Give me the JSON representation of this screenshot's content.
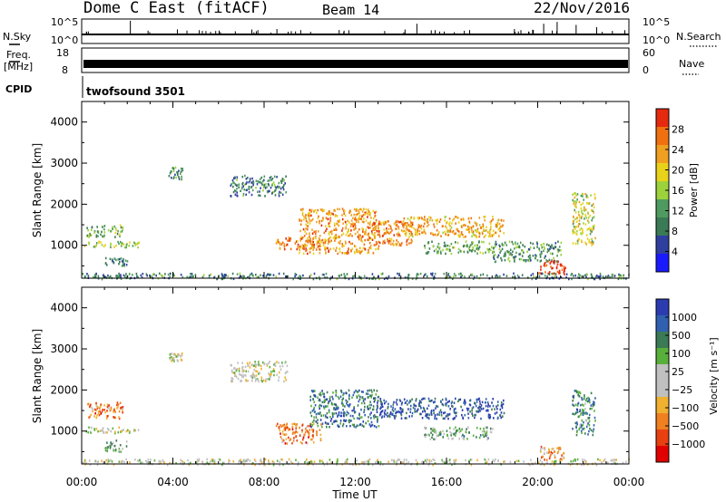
{
  "header": {
    "title": "Dome C East (fitACF)",
    "beam": "Beam 14",
    "date": "22/Nov/2016"
  },
  "summary_panels": {
    "nsky_label": "N.Sky",
    "nsky_ticks": [
      "10^5",
      "10^0"
    ],
    "nsky_right_ticks": [
      "10^5",
      "10^0"
    ],
    "nsearch_label": "N.Search",
    "freq_label_1": "Freq.",
    "freq_label_2": "[MHz]",
    "freq_ticks": [
      "18",
      "8"
    ],
    "nave_ticks": [
      "60",
      "0"
    ],
    "nave_label": "Nave",
    "cpid_label": "CPID",
    "cpid_value": "twofsound 3501"
  },
  "colors": {
    "power_scale": [
      "#1a1aff",
      "#2e3fa0",
      "#3a7a55",
      "#4f9a60",
      "#9cd23c",
      "#e8d21a",
      "#f0a020",
      "#f07010",
      "#e52a10"
    ],
    "velocity_scale": [
      "#2a3cb0",
      "#3060b0",
      "#3a7a55",
      "#58b03a",
      "#c0c0c0",
      "#c0c0c0",
      "#f0b030",
      "#f08020",
      "#e84010",
      "#e00000"
    ]
  },
  "chart_data": [
    {
      "type": "heatmap",
      "name": "power",
      "ylabel": "Slant Range [km]",
      "yticks": [
        1000,
        2000,
        3000,
        4000
      ],
      "ylim": [
        200,
        4500
      ],
      "xlim": [
        0,
        24
      ],
      "colorbar_label": "Power [dB]",
      "colorbar_ticks": [
        "28",
        "24",
        "20",
        "16",
        "12",
        "8",
        "4"
      ],
      "echo_regions": [
        {
          "t0": 0.0,
          "t1": 2.5,
          "r0": 950,
          "r1": 1100,
          "level": 0.5
        },
        {
          "t0": 0.2,
          "t1": 1.8,
          "r0": 1200,
          "r1": 1500,
          "level": 0.4
        },
        {
          "t0": 1.0,
          "t1": 2.0,
          "r0": 500,
          "r1": 700,
          "level": 0.3
        },
        {
          "t0": 3.8,
          "t1": 4.4,
          "r0": 2600,
          "r1": 2900,
          "level": 0.3
        },
        {
          "t0": 6.5,
          "t1": 9.0,
          "r0": 2200,
          "r1": 2700,
          "level": 0.3
        },
        {
          "t0": 8.5,
          "t1": 10.5,
          "r0": 900,
          "r1": 1200,
          "level": 0.8
        },
        {
          "t0": 9.5,
          "t1": 13.0,
          "r0": 800,
          "r1": 1900,
          "level": 0.75
        },
        {
          "t0": 12.5,
          "t1": 14.5,
          "r0": 1000,
          "r1": 1600,
          "level": 0.8
        },
        {
          "t0": 14.0,
          "t1": 18.5,
          "r0": 1200,
          "r1": 1700,
          "level": 0.7
        },
        {
          "t0": 15.0,
          "t1": 18.0,
          "r0": 800,
          "r1": 1100,
          "level": 0.4
        },
        {
          "t0": 18.0,
          "t1": 21.0,
          "r0": 600,
          "r1": 1100,
          "level": 0.35
        },
        {
          "t0": 20.0,
          "t1": 21.2,
          "r0": 300,
          "r1": 650,
          "level": 0.95
        },
        {
          "t0": 21.5,
          "t1": 22.5,
          "r0": 1000,
          "r1": 2300,
          "level": 0.55
        },
        {
          "t0": 0.0,
          "t1": 24.0,
          "r0": 180,
          "r1": 320,
          "level": 0.3
        }
      ]
    },
    {
      "type": "heatmap",
      "name": "velocity",
      "ylabel": "Slant Range [km]",
      "yticks": [
        1000,
        2000,
        3000,
        4000
      ],
      "ylim": [
        200,
        4500
      ],
      "xlim": [
        0,
        24
      ],
      "xlabel": "Time UT",
      "xticks": [
        "00:00",
        "04:00",
        "08:00",
        "12:00",
        "16:00",
        "20:00",
        "00:00"
      ],
      "colorbar_label": "Velocity [m s⁻¹]",
      "colorbar_ticks": [
        "1000",
        "500",
        "100",
        "25",
        "−25",
        "−100",
        "−500",
        "−1000"
      ],
      "echo_regions": [
        {
          "t0": 0.0,
          "t1": 2.5,
          "r0": 950,
          "r1": 1100,
          "level": 0.5
        },
        {
          "t0": 0.2,
          "t1": 1.8,
          "r0": 1300,
          "r1": 1700,
          "level": 0.75
        },
        {
          "t0": 1.0,
          "t1": 2.0,
          "r0": 500,
          "r1": 800,
          "level": 0.35
        },
        {
          "t0": 3.8,
          "t1": 4.4,
          "r0": 2700,
          "r1": 2900,
          "level": 0.5
        },
        {
          "t0": 6.5,
          "t1": 9.0,
          "r0": 2200,
          "r1": 2700,
          "level": 0.5
        },
        {
          "t0": 8.5,
          "t1": 10.5,
          "r0": 700,
          "r1": 1200,
          "level": 0.75
        },
        {
          "t0": 10.0,
          "t1": 13.0,
          "r0": 1100,
          "r1": 2000,
          "level": 0.2
        },
        {
          "t0": 13.0,
          "t1": 18.5,
          "r0": 1300,
          "r1": 1800,
          "level": 0.1
        },
        {
          "t0": 15.0,
          "t1": 18.0,
          "r0": 800,
          "r1": 1100,
          "level": 0.35
        },
        {
          "t0": 20.0,
          "t1": 21.2,
          "r0": 300,
          "r1": 650,
          "level": 0.7
        },
        {
          "t0": 21.5,
          "t1": 22.5,
          "r0": 900,
          "r1": 2000,
          "level": 0.25
        },
        {
          "t0": 0.0,
          "t1": 24.0,
          "r0": 180,
          "r1": 320,
          "level": 0.5
        }
      ]
    }
  ]
}
